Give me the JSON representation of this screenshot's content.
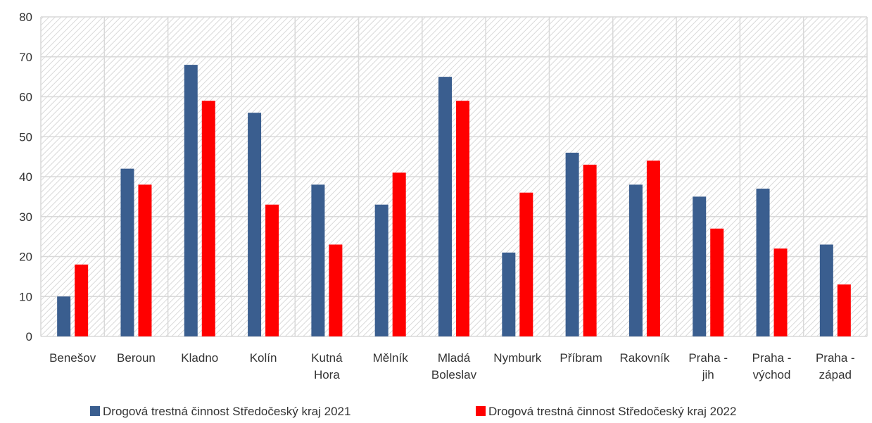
{
  "chart_data": {
    "type": "bar",
    "categories": [
      [
        "Benešov"
      ],
      [
        "Beroun"
      ],
      [
        "Kladno"
      ],
      [
        "Kolín"
      ],
      [
        "Kutná",
        "Hora"
      ],
      [
        "Mělník"
      ],
      [
        "Mladá",
        "Boleslav"
      ],
      [
        "Nymburk"
      ],
      [
        "Příbram"
      ],
      [
        "Rakovník"
      ],
      [
        "Praha -",
        "jih"
      ],
      [
        "Praha -",
        "východ"
      ],
      [
        "Praha -",
        "západ"
      ]
    ],
    "series": [
      {
        "name": "Drogová trestná činnost Středočeský kraj 2021",
        "color": "#3A5E8F",
        "values": [
          10,
          42,
          68,
          56,
          38,
          33,
          65,
          21,
          46,
          38,
          35,
          37,
          23
        ]
      },
      {
        "name": "Drogová trestná činnost Středočeský kraj 2022",
        "color": "#FF0000",
        "values": [
          18,
          38,
          59,
          33,
          23,
          41,
          59,
          36,
          43,
          44,
          27,
          22,
          13
        ]
      }
    ],
    "yticks": [
      "0",
      "10",
      "20",
      "30",
      "40",
      "50",
      "60",
      "70",
      "80"
    ],
    "ylim": [
      0,
      80
    ],
    "grid": true,
    "legend_position": "bottom"
  }
}
